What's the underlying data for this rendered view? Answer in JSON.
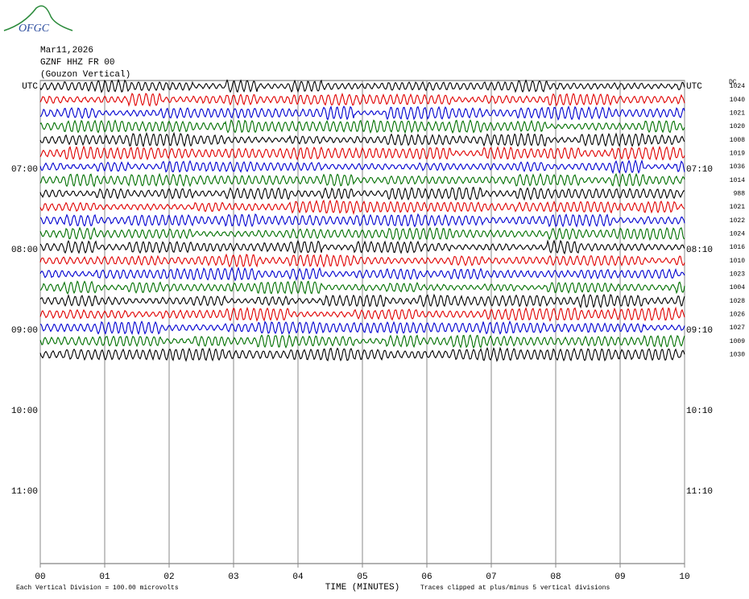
{
  "header": {
    "logo": "OFGC",
    "date": "Mar11,2026",
    "station": "GZNF HHZ FR 00",
    "location": "(Gouzon Vertical)"
  },
  "left_labels": [
    "UTC",
    "07:00",
    "08:00",
    "09:00",
    "10:00",
    "11:00"
  ],
  "right_labels": [
    "UTC",
    "07:10",
    "08:10",
    "09:10",
    "10:10",
    "11:10"
  ],
  "dc_label": "DC",
  "dc_values": [
    1024,
    1040,
    1021,
    1020,
    1008,
    1019,
    1036,
    1014,
    988,
    1021,
    1022,
    1024,
    1016,
    1010,
    1023,
    1004,
    1028,
    1026,
    1027,
    1009,
    1030
  ],
  "trace_colors": [
    "#000000",
    "#e00000",
    "#0000d0",
    "#007000"
  ],
  "x_ticks": [
    "00",
    "01",
    "02",
    "03",
    "04",
    "05",
    "06",
    "07",
    "08",
    "09",
    "10"
  ],
  "x_title": "TIME (MINUTES)",
  "footer_left": "Each Vertical Division =  100.00 microvolts",
  "footer_right": "Traces clipped at plus/minus 5 vertical divisions"
}
